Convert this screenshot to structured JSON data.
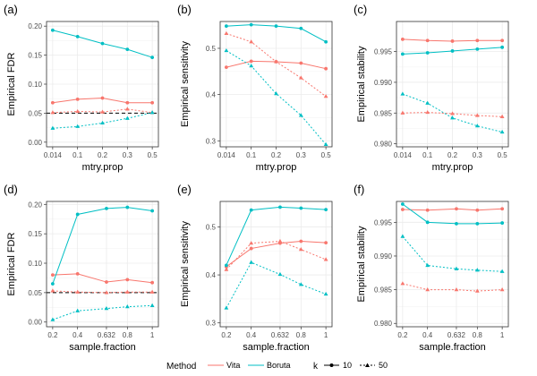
{
  "colors": {
    "vita": "#F8766D",
    "boruta": "#00BFC4",
    "ref": "#000000",
    "grid": "#ebebeb",
    "axis": "#333333"
  },
  "legend": {
    "method_title": "Method",
    "methods": [
      "Vita",
      "Boruta"
    ],
    "k_title": "k",
    "k_values": [
      "10",
      "50"
    ]
  },
  "chart_data": [
    {
      "type": "line",
      "panel_label": "(a)",
      "xlabel": "mtry.prop",
      "ylabel": "Empirical FDR",
      "categories": [
        "0.014",
        "0.1",
        "0.2",
        "0.3",
        "0.5"
      ],
      "ylim": [
        -0.008,
        0.208
      ],
      "yticks": [
        "0.00",
        "0.05",
        "0.10",
        "0.15",
        "0.20"
      ],
      "ytick_values": [
        0,
        0.05,
        0.1,
        0.15,
        0.2
      ],
      "reference_line": 0.05,
      "series": [
        {
          "method": "Vita",
          "k": "10",
          "values": [
            0.068,
            0.074,
            0.076,
            0.068,
            0.068
          ]
        },
        {
          "method": "Vita",
          "k": "50",
          "values": [
            0.051,
            0.053,
            0.052,
            0.057,
            0.051
          ]
        },
        {
          "method": "Boruta",
          "k": "10",
          "values": [
            0.193,
            0.182,
            0.17,
            0.16,
            0.146
          ]
        },
        {
          "method": "Boruta",
          "k": "50",
          "values": [
            0.024,
            0.027,
            0.033,
            0.041,
            0.051
          ]
        }
      ]
    },
    {
      "type": "line",
      "panel_label": "(b)",
      "xlabel": "mtry.prop",
      "ylabel": "Empirical sensitivity",
      "categories": [
        "0.014",
        "0.1",
        "0.2",
        "0.3",
        "0.5"
      ],
      "ylim": [
        0.287,
        0.558
      ],
      "yticks": [
        "0.3",
        "0.4",
        "0.5"
      ],
      "ytick_values": [
        0.3,
        0.4,
        0.5
      ],
      "series": [
        {
          "method": "Vita",
          "k": "10",
          "values": [
            0.459,
            0.472,
            0.471,
            0.468,
            0.456
          ]
        },
        {
          "method": "Vita",
          "k": "50",
          "values": [
            0.532,
            0.514,
            0.471,
            0.436,
            0.396
          ]
        },
        {
          "method": "Boruta",
          "k": "10",
          "values": [
            0.548,
            0.551,
            0.548,
            0.543,
            0.514
          ]
        },
        {
          "method": "Boruta",
          "k": "50",
          "values": [
            0.495,
            0.462,
            0.402,
            0.355,
            0.292
          ]
        }
      ]
    },
    {
      "type": "line",
      "panel_label": "(c)",
      "xlabel": "mtry.prop",
      "ylabel": "Empirical stability",
      "categories": [
        "0.014",
        "0.1",
        "0.2",
        "0.3",
        "0.5"
      ],
      "ylim": [
        0.9795,
        0.9999
      ],
      "yticks": [
        "0.980",
        "0.985",
        "0.990",
        "0.995"
      ],
      "ytick_values": [
        0.98,
        0.985,
        0.99,
        0.995
      ],
      "series": [
        {
          "method": "Vita",
          "k": "10",
          "values": [
            0.997,
            0.9968,
            0.9967,
            0.9968,
            0.9968
          ]
        },
        {
          "method": "Vita",
          "k": "50",
          "values": [
            0.985,
            0.9851,
            0.9849,
            0.9846,
            0.9844
          ]
        },
        {
          "method": "Boruta",
          "k": "10",
          "values": [
            0.9946,
            0.9948,
            0.9951,
            0.9954,
            0.9957
          ]
        },
        {
          "method": "Boruta",
          "k": "50",
          "values": [
            0.9881,
            0.9866,
            0.9842,
            0.9829,
            0.9819
          ]
        }
      ]
    },
    {
      "type": "line",
      "panel_label": "(d)",
      "xlabel": "sample.fraction",
      "ylabel": "Empirical FDR",
      "categories": [
        "0.2",
        "0.4",
        "0.632",
        "0.8",
        "1"
      ],
      "x": [
        0.2,
        0.4,
        0.632,
        0.8,
        1.0
      ],
      "ylim": [
        -0.008,
        0.205
      ],
      "yticks": [
        "0.00",
        "0.05",
        "0.10",
        "0.15",
        "0.20"
      ],
      "ytick_values": [
        0,
        0.05,
        0.1,
        0.15,
        0.2
      ],
      "reference_line": 0.05,
      "series": [
        {
          "method": "Vita",
          "k": "10",
          "values": [
            0.08,
            0.082,
            0.068,
            0.072,
            0.067
          ]
        },
        {
          "method": "Vita",
          "k": "50",
          "values": [
            0.053,
            0.051,
            0.05,
            0.051,
            0.051
          ]
        },
        {
          "method": "Boruta",
          "k": "10",
          "values": [
            0.065,
            0.183,
            0.193,
            0.195,
            0.189
          ]
        },
        {
          "method": "Boruta",
          "k": "50",
          "values": [
            0.004,
            0.019,
            0.023,
            0.026,
            0.028
          ]
        }
      ]
    },
    {
      "type": "line",
      "panel_label": "(e)",
      "xlabel": "sample.fraction",
      "ylabel": "Empirical sensitivity",
      "categories": [
        "0.2",
        "0.4",
        "0.632",
        "0.8",
        "1"
      ],
      "x": [
        0.2,
        0.4,
        0.632,
        0.8,
        1.0
      ],
      "ylim": [
        0.292,
        0.553
      ],
      "yticks": [
        "0.3",
        "0.4",
        "0.5"
      ],
      "ytick_values": [
        0.3,
        0.4,
        0.5
      ],
      "series": [
        {
          "method": "Vita",
          "k": "10",
          "values": [
            0.417,
            0.455,
            0.466,
            0.47,
            0.467
          ]
        },
        {
          "method": "Vita",
          "k": "50",
          "values": [
            0.411,
            0.466,
            0.47,
            0.453,
            0.432
          ]
        },
        {
          "method": "Boruta",
          "k": "10",
          "values": [
            0.42,
            0.535,
            0.541,
            0.539,
            0.536
          ]
        },
        {
          "method": "Boruta",
          "k": "50",
          "values": [
            0.331,
            0.426,
            0.401,
            0.38,
            0.36
          ]
        }
      ]
    },
    {
      "type": "line",
      "panel_label": "(f)",
      "xlabel": "sample.fraction",
      "ylabel": "Empirical stability",
      "categories": [
        "0.2",
        "0.4",
        "0.632",
        "0.8",
        "1"
      ],
      "x": [
        0.2,
        0.4,
        0.632,
        0.8,
        1.0
      ],
      "ylim": [
        0.9795,
        0.9981
      ],
      "yticks": [
        "0.980",
        "0.985",
        "0.990",
        "0.995"
      ],
      "ytick_values": [
        0.98,
        0.985,
        0.99,
        0.995
      ],
      "series": [
        {
          "method": "Vita",
          "k": "10",
          "values": [
            0.9969,
            0.9968,
            0.997,
            0.9968,
            0.997
          ]
        },
        {
          "method": "Vita",
          "k": "50",
          "values": [
            0.9859,
            0.985,
            0.985,
            0.9848,
            0.985
          ]
        },
        {
          "method": "Boruta",
          "k": "10",
          "values": [
            0.9977,
            0.995,
            0.9948,
            0.9948,
            0.9949
          ]
        },
        {
          "method": "Boruta",
          "k": "50",
          "values": [
            0.9929,
            0.9886,
            0.9881,
            0.9879,
            0.9877
          ]
        }
      ]
    }
  ]
}
